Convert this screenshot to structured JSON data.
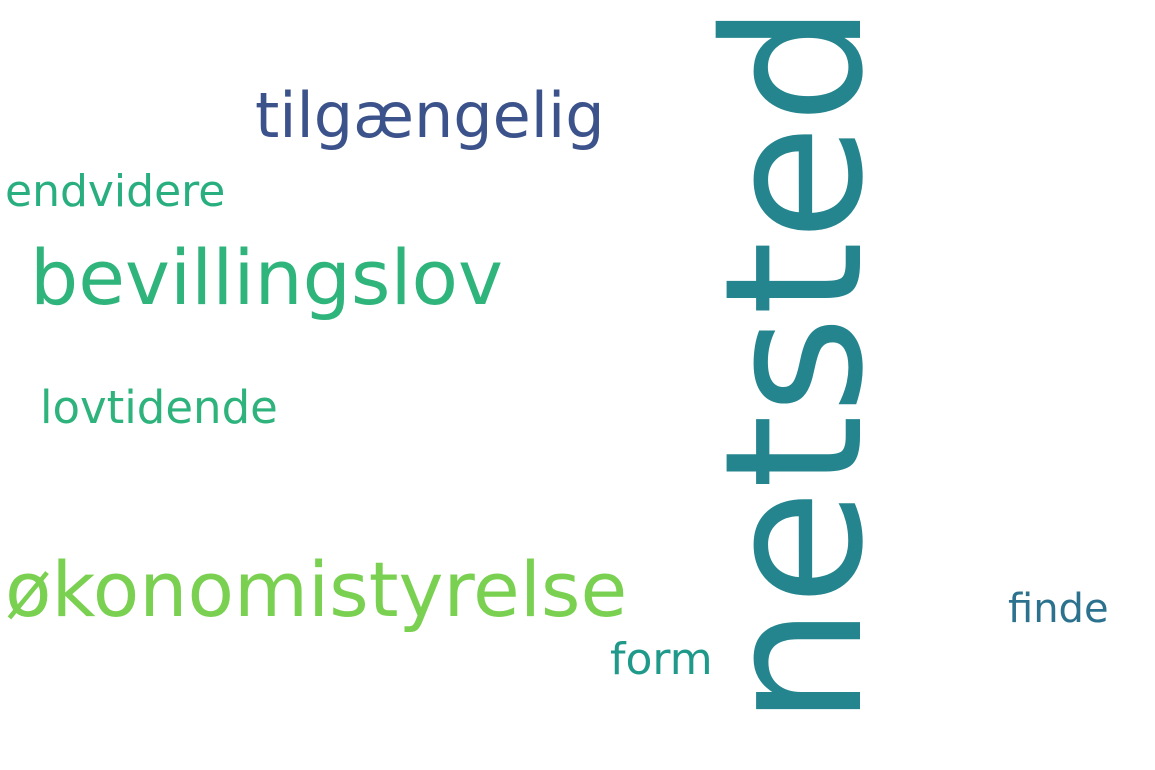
{
  "words": {
    "netsted": {
      "text": "netsted",
      "color": "#25858e"
    },
    "okonomistyrelse": {
      "text": "økonomistyrelse",
      "color": "#7ad151"
    },
    "bevillingslov": {
      "text": "bevillingslov",
      "color": "#2fb47c"
    },
    "tilgaengelig": {
      "text": "tilgængelig",
      "color": "#3b528b"
    },
    "endvidere": {
      "text": "endvidere",
      "color": "#29af7f"
    },
    "lovtidende": {
      "text": "lovtidende",
      "color": "#2eb37c"
    },
    "form": {
      "text": "form",
      "color": "#1f9a8a"
    },
    "finde": {
      "text": "finde",
      "color": "#2c728e"
    }
  }
}
